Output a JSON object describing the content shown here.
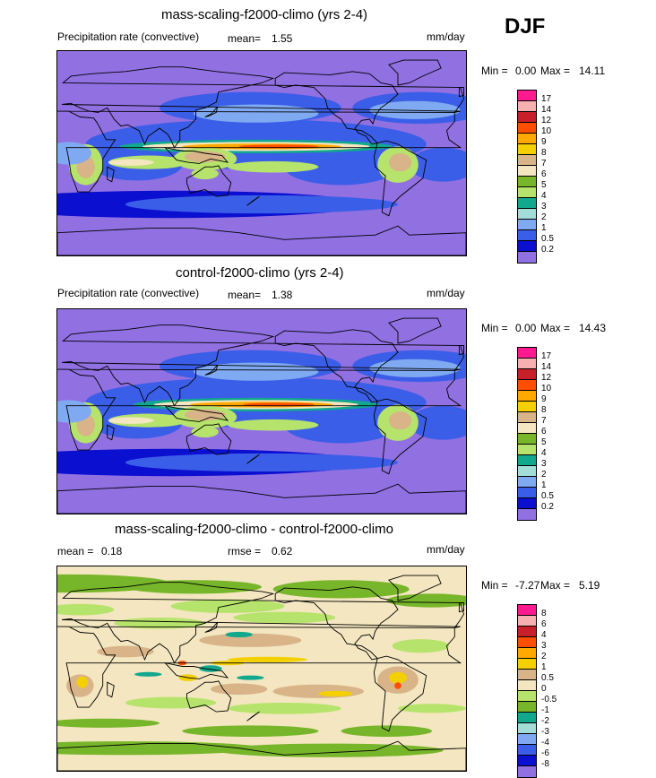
{
  "season": "DJF",
  "panels": [
    {
      "title": "mass-scaling-f2000-climo (yrs 2-4)",
      "variable": "Precipitation rate (convective)",
      "mean_label": "mean=",
      "mean_value": "1.55",
      "units": "mm/day",
      "minmax_label": "Min =",
      "min_value": "0.00",
      "max_label": "Max =",
      "max_value": "14.11",
      "levels": [
        "17",
        "14",
        "12",
        "10",
        "9",
        "8",
        "7",
        "6",
        "5",
        "4",
        "3",
        "2",
        "1",
        "0.5",
        "0.2"
      ],
      "colors": [
        "#ff1a90",
        "#f7b0b0",
        "#c8202a",
        "#ff4e00",
        "#ffa800",
        "#f5d000",
        "#d8b488",
        "#f3e6c0",
        "#77b52a",
        "#b6e36b",
        "#12a88e",
        "#a2ddd8",
        "#7fa9f0",
        "#3b5ee8",
        "#0b0fd0",
        "#9170e2"
      ],
      "field_scale": 1.0
    },
    {
      "title": "control-f2000-climo (yrs 2-4)",
      "variable": "Precipitation rate (convective)",
      "mean_label": "mean=",
      "mean_value": "1.38",
      "units": "mm/day",
      "minmax_label": "Min =",
      "min_value": "0.00",
      "max_label": "Max =",
      "max_value": "14.43",
      "levels": [
        "17",
        "14",
        "12",
        "10",
        "9",
        "8",
        "7",
        "6",
        "5",
        "4",
        "3",
        "2",
        "1",
        "0.5",
        "0.2"
      ],
      "colors": [
        "#ff1a90",
        "#f7b0b0",
        "#c8202a",
        "#ff4e00",
        "#ffa800",
        "#f5d000",
        "#d8b488",
        "#f3e6c0",
        "#77b52a",
        "#b6e36b",
        "#12a88e",
        "#a2ddd8",
        "#7fa9f0",
        "#3b5ee8",
        "#0b0fd0",
        "#9170e2"
      ],
      "field_scale": 0.9
    },
    {
      "title": "mass-scaling-f2000-climo - control-f2000-climo",
      "mean_label": "mean =",
      "mean_value": "0.18",
      "rmse_label": "rmse =",
      "rmse_value": "0.62",
      "units": "mm/day",
      "minmax_label": "Min =",
      "min_value": "-7.27",
      "max_label": "Max =",
      "max_value": "5.19",
      "levels": [
        "8",
        "6",
        "4",
        "3",
        "2",
        "1",
        "0.5",
        "0",
        "-0.5",
        "-1",
        "-2",
        "-3",
        "-4",
        "-6",
        "-8"
      ],
      "colors": [
        "#ff1a90",
        "#f7b0b0",
        "#c8202a",
        "#ff4e00",
        "#ffa800",
        "#f5d000",
        "#d8b488",
        "#f3e6c0",
        "#b6e36b",
        "#77b52a",
        "#12a88e",
        "#a2ddd8",
        "#7fa9f0",
        "#3b5ee8",
        "#0b0fd0",
        "#9170e2"
      ]
    }
  ]
}
